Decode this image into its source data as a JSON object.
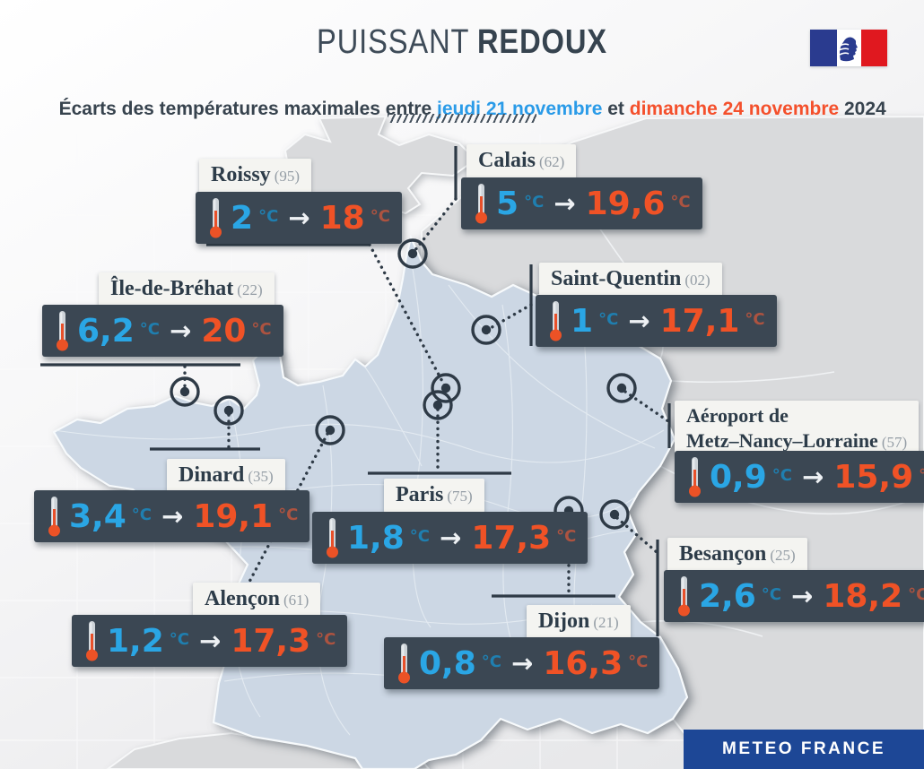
{
  "header": {
    "title_light": "PUISSANT",
    "title_bold": "REDOUX",
    "subtitle_prefix": "Écarts des températures maximales entre ",
    "subtitle_date1": "jeudi 21 novembre",
    "subtitle_and": " et ",
    "subtitle_date2": "dimanche 24 novembre",
    "subtitle_year": " 2024",
    "logo_name": "drapeau-france-marianne"
  },
  "footer": {
    "brand": "METEO FRANCE"
  },
  "unit": "°C",
  "arrow": "→",
  "colors": {
    "value_before": "#2aa6e5",
    "value_after": "#f05226",
    "box_bg": "#3b4753",
    "label_bg": "#f4f4f1",
    "accent_blue": "#2a9be8",
    "accent_orange": "#f4502c",
    "banner_bg": "#1d4796",
    "france_fill": "#ccd7e4",
    "neighbor_fill": "#d9dadc"
  },
  "stations": [
    {
      "id": "roissy",
      "name": "Roissy",
      "dept": "(95)",
      "before": "2",
      "after": "18"
    },
    {
      "id": "calais",
      "name": "Calais",
      "dept": "(62)",
      "before": "5",
      "after": "19,6"
    },
    {
      "id": "saint_quentin",
      "name": "Saint-Quentin",
      "dept": "(02)",
      "before": "1",
      "after": "17,1"
    },
    {
      "id": "brehat",
      "name": "Île-de-Bréhat",
      "dept": "(22)",
      "before": "6,2",
      "after": "20"
    },
    {
      "id": "dinard",
      "name": "Dinard",
      "dept": "(35)",
      "before": "3,4",
      "after": "19,1"
    },
    {
      "id": "paris",
      "name": "Paris",
      "dept": "(75)",
      "before": "1,8",
      "after": "17,3"
    },
    {
      "id": "metz",
      "name": "Aéroport de\nMetz–Nancy–Lorraine",
      "dept": "(57)",
      "before": "0,9",
      "after": "15,9"
    },
    {
      "id": "besancon",
      "name": "Besançon",
      "dept": "(25)",
      "before": "2,6",
      "after": "18,2"
    },
    {
      "id": "alencon",
      "name": "Alençon",
      "dept": "(61)",
      "before": "1,2",
      "after": "17,3"
    },
    {
      "id": "dijon",
      "name": "Dijon",
      "dept": "(21)",
      "before": "0,8",
      "after": "16,3"
    }
  ],
  "chart_data": {
    "type": "map-infographic",
    "title": "PUISSANT REDOUX",
    "subtitle": "Écarts des températures maximales entre jeudi 21 novembre et dimanche 24 novembre 2024",
    "region": "France métropolitaine",
    "unit": "°C",
    "series_labels": [
      "maximale jeudi 21 novembre",
      "maximale dimanche 24 novembre"
    ],
    "points": [
      {
        "station": "Roissy",
        "departement": "95",
        "t_jeudi": 2.0,
        "t_dimanche": 18.0
      },
      {
        "station": "Calais",
        "departement": "62",
        "t_jeudi": 5.0,
        "t_dimanche": 19.6
      },
      {
        "station": "Saint-Quentin",
        "departement": "02",
        "t_jeudi": 1.0,
        "t_dimanche": 17.1
      },
      {
        "station": "Île-de-Bréhat",
        "departement": "22",
        "t_jeudi": 6.2,
        "t_dimanche": 20.0
      },
      {
        "station": "Dinard",
        "departement": "35",
        "t_jeudi": 3.4,
        "t_dimanche": 19.1
      },
      {
        "station": "Paris",
        "departement": "75",
        "t_jeudi": 1.8,
        "t_dimanche": 17.3
      },
      {
        "station": "Aéroport de Metz–Nancy–Lorraine",
        "departement": "57",
        "t_jeudi": 0.9,
        "t_dimanche": 15.9
      },
      {
        "station": "Besançon",
        "departement": "25",
        "t_jeudi": 2.6,
        "t_dimanche": 18.2
      },
      {
        "station": "Alençon",
        "departement": "61",
        "t_jeudi": 1.2,
        "t_dimanche": 17.3
      },
      {
        "station": "Dijon",
        "departement": "21",
        "t_jeudi": 0.8,
        "t_dimanche": 16.3
      }
    ],
    "source": "METEO FRANCE"
  }
}
